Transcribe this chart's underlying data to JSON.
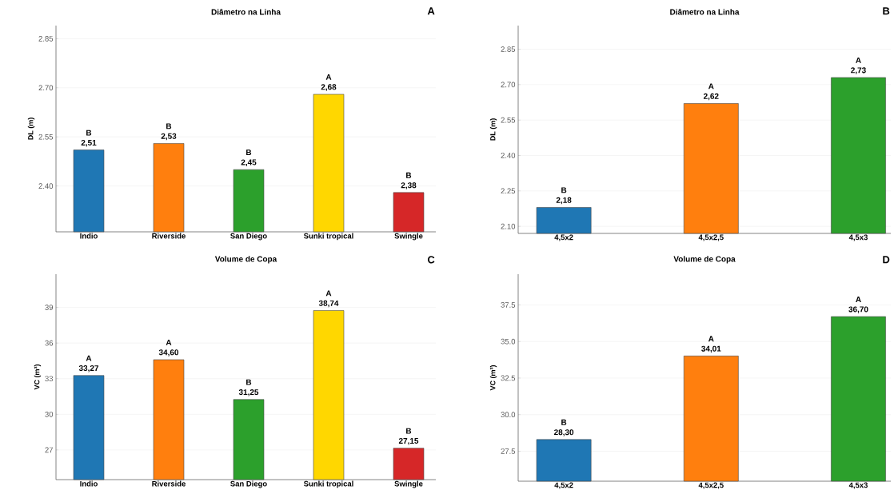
{
  "chart_data": [
    {
      "type": "bar",
      "title": "Diâmetro na Linha",
      "ylabel": "DL (m)",
      "categories": [
        "Indio",
        "Riverside",
        "San Diego",
        "Sunki tropical",
        "Swingle"
      ],
      "values": [
        2.51,
        2.53,
        2.45,
        2.68,
        2.38
      ],
      "colors": [
        "#1f77b4",
        "#ff7f0e",
        "#2ca02c",
        "#ffd700",
        "#d62728"
      ],
      "value_labels": [
        "2,51",
        "2,53",
        "2,45",
        "2,68",
        "2,38"
      ],
      "ylim": [
        2.26,
        2.89
      ],
      "yticks": [
        {
          "value": 2.4,
          "label": "2.40"
        },
        2.55,
        {
          "value": 2.7,
          "label": "2.70"
        },
        2.85
      ],
      "grid": "y",
      "annotations": [
        "A",
        {
          "text": "B",
          "x": "Indio",
          "y": 2.51
        },
        {
          "text": "B",
          "x": "Riverside",
          "y": 2.53
        },
        {
          "text": "B",
          "x": "San Diego",
          "y": 2.45
        },
        {
          "text": "A",
          "x": "Sunki tropical",
          "y": 2.68
        },
        {
          "text": "B",
          "x": "Swingle",
          "y": 2.38
        }
      ]
    },
    {
      "type": "bar",
      "title": "Diâmetro na Linha",
      "ylabel": "DL (m)",
      "categories": [
        "4,5x2",
        "4,5x2,5",
        "4,5x3"
      ],
      "values": [
        2.18,
        2.62,
        2.73
      ],
      "colors": [
        "#1f77b4",
        "#ff7f0e",
        "#2ca02c"
      ],
      "value_labels": [
        "2,18",
        "2,62",
        "2,73"
      ],
      "ylim": [
        2.07,
        2.95
      ],
      "yticks": [
        {
          "value": 2.1,
          "label": "2.10"
        },
        2.25,
        {
          "value": 2.4,
          "label": "2.40"
        },
        2.55,
        {
          "value": 2.7,
          "label": "2.70"
        },
        2.85
      ],
      "grid": "y",
      "annotations": [
        "B",
        {
          "text": "B",
          "x": "4,5x2",
          "y": 2.18
        },
        {
          "text": "A",
          "x": "4,5x2,5",
          "y": 2.62
        },
        {
          "text": "A",
          "x": "4,5x3",
          "y": 2.73
        }
      ]
    },
    {
      "type": "bar",
      "title": "Volume de Copa",
      "ylabel": "VC (m³)",
      "categories": [
        "Indio",
        "Riverside",
        "San Diego",
        "Sunki tropical",
        "Swingle"
      ],
      "values": [
        33.27,
        34.6,
        31.25,
        38.74,
        27.15
      ],
      "colors": [
        "#1f77b4",
        "#ff7f0e",
        "#2ca02c",
        "#ffd700",
        "#d62728"
      ],
      "value_labels": [
        "33,27",
        "34,60",
        "31,25",
        "38,74",
        "27,15"
      ],
      "ylim": [
        24.5,
        41.8
      ],
      "yticks": [
        27,
        30,
        33,
        36,
        39
      ],
      "grid": "y",
      "annotations": [
        "C",
        {
          "text": "A",
          "x": "Indio",
          "y": 33.27
        },
        {
          "text": "A",
          "x": "Riverside",
          "y": 34.6
        },
        {
          "text": "B",
          "x": "San Diego",
          "y": 31.25
        },
        {
          "text": "A",
          "x": "Sunki tropical",
          "y": 38.74
        },
        {
          "text": "B",
          "x": "Swingle",
          "y": 27.15
        }
      ]
    },
    {
      "type": "bar",
      "title": "Volume de Copa",
      "ylabel": "VC (m³)",
      "categories": [
        "4,5x2",
        "4,5x2,5",
        "4,5x3"
      ],
      "values": [
        28.3,
        34.01,
        36.7
      ],
      "colors": [
        "#1f77b4",
        "#ff7f0e",
        "#2ca02c"
      ],
      "value_labels": [
        "28,30",
        "34,01",
        "36,70"
      ],
      "ylim": [
        25.45,
        39.6
      ],
      "yticks": [
        27.5,
        {
          "value": 30,
          "label": "30.0"
        },
        32.5,
        {
          "value": 35,
          "label": "35.0"
        },
        37.5
      ],
      "grid": "y",
      "annotations": [
        "D",
        {
          "text": "B",
          "x": "4,5x2",
          "y": 28.3
        },
        {
          "text": "A",
          "x": "4,5x2,5",
          "y": 34.01
        },
        {
          "text": "A",
          "x": "4,5x3",
          "y": 36.7
        }
      ]
    }
  ]
}
